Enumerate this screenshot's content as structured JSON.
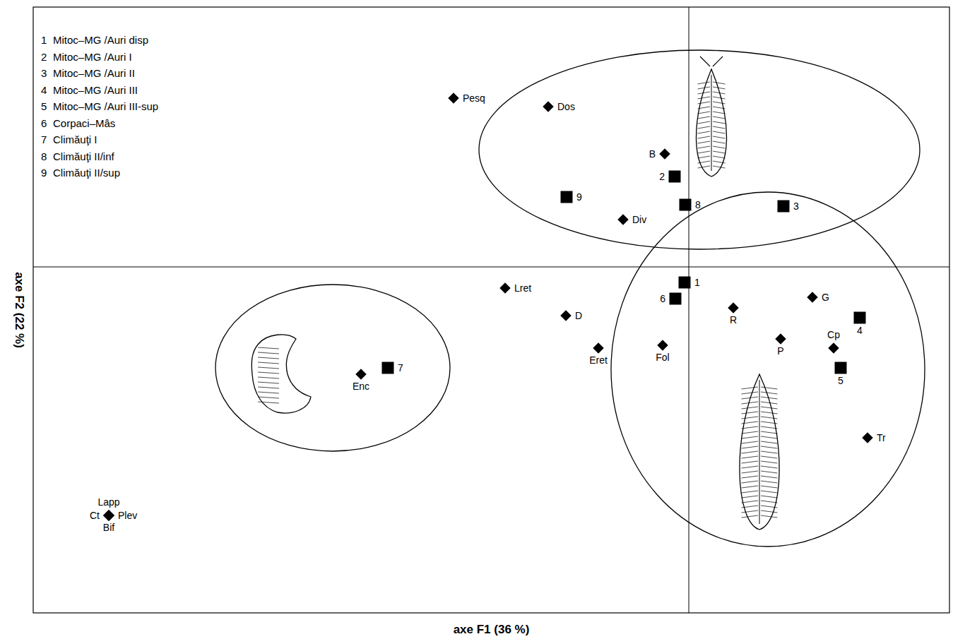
{
  "chart_data": {
    "type": "scatter",
    "xlabel": "axe F1 (36 %)",
    "ylabel": "axe F2 (22 %)",
    "xlim": [
      -9.28,
      3.69
    ],
    "ylim": [
      -4.9,
      3.68
    ],
    "xticks": [
      0
    ],
    "yticks": [
      0
    ],
    "grid": true,
    "tick_labels": false,
    "legend": "upper left",
    "series": [
      {
        "marker": "square",
        "color": "#000000",
        "labels": [
          "1",
          "2",
          "3",
          "4",
          "5",
          "6",
          "7",
          "8",
          "9"
        ],
        "names": [
          "Mitoc–MG /Auri disp",
          "Mitoc–MG /Auri I",
          "Mitoc–MG /Auri II",
          "Mitoc–MG /Auri III",
          "Mitoc–MG /Auri III-sup",
          "Corpaci–Mâs",
          "Climăuţi I",
          "Climăuţi II/inf",
          "Climăuţi II/sup"
        ],
        "x": [
          -0.06,
          -0.2,
          1.34,
          2.42,
          2.15,
          -0.19,
          -4.26,
          -0.05,
          -1.73
        ],
        "y": [
          -0.22,
          1.28,
          0.86,
          -0.72,
          -1.43,
          -0.45,
          -1.43,
          0.88,
          0.99
        ]
      },
      {
        "marker": "diamond",
        "color": "#000000",
        "labels": [
          "Pesq",
          "Dos",
          "B",
          "Div",
          "Lret",
          "D",
          "Eret",
          "Fol",
          "R",
          "G",
          "P",
          "Cp",
          "Tr",
          "Enc",
          "Lapp",
          "Ct",
          "Plev",
          "Bif"
        ],
        "x": [
          -3.33,
          -1.99,
          -0.34,
          -0.93,
          -2.6,
          -1.74,
          -1.28,
          -0.37,
          0.63,
          1.75,
          1.3,
          2.05,
          2.53,
          -4.64,
          -8.21,
          -8.21,
          -8.21,
          -8.21
        ],
        "y": [
          2.39,
          2.27,
          1.6,
          0.67,
          -0.3,
          -0.69,
          -1.15,
          -1.11,
          -0.58,
          -0.43,
          -1.02,
          -1.15,
          -2.42,
          -1.52,
          -3.52,
          -3.52,
          -3.52,
          -3.52
        ]
      }
    ]
  }
}
